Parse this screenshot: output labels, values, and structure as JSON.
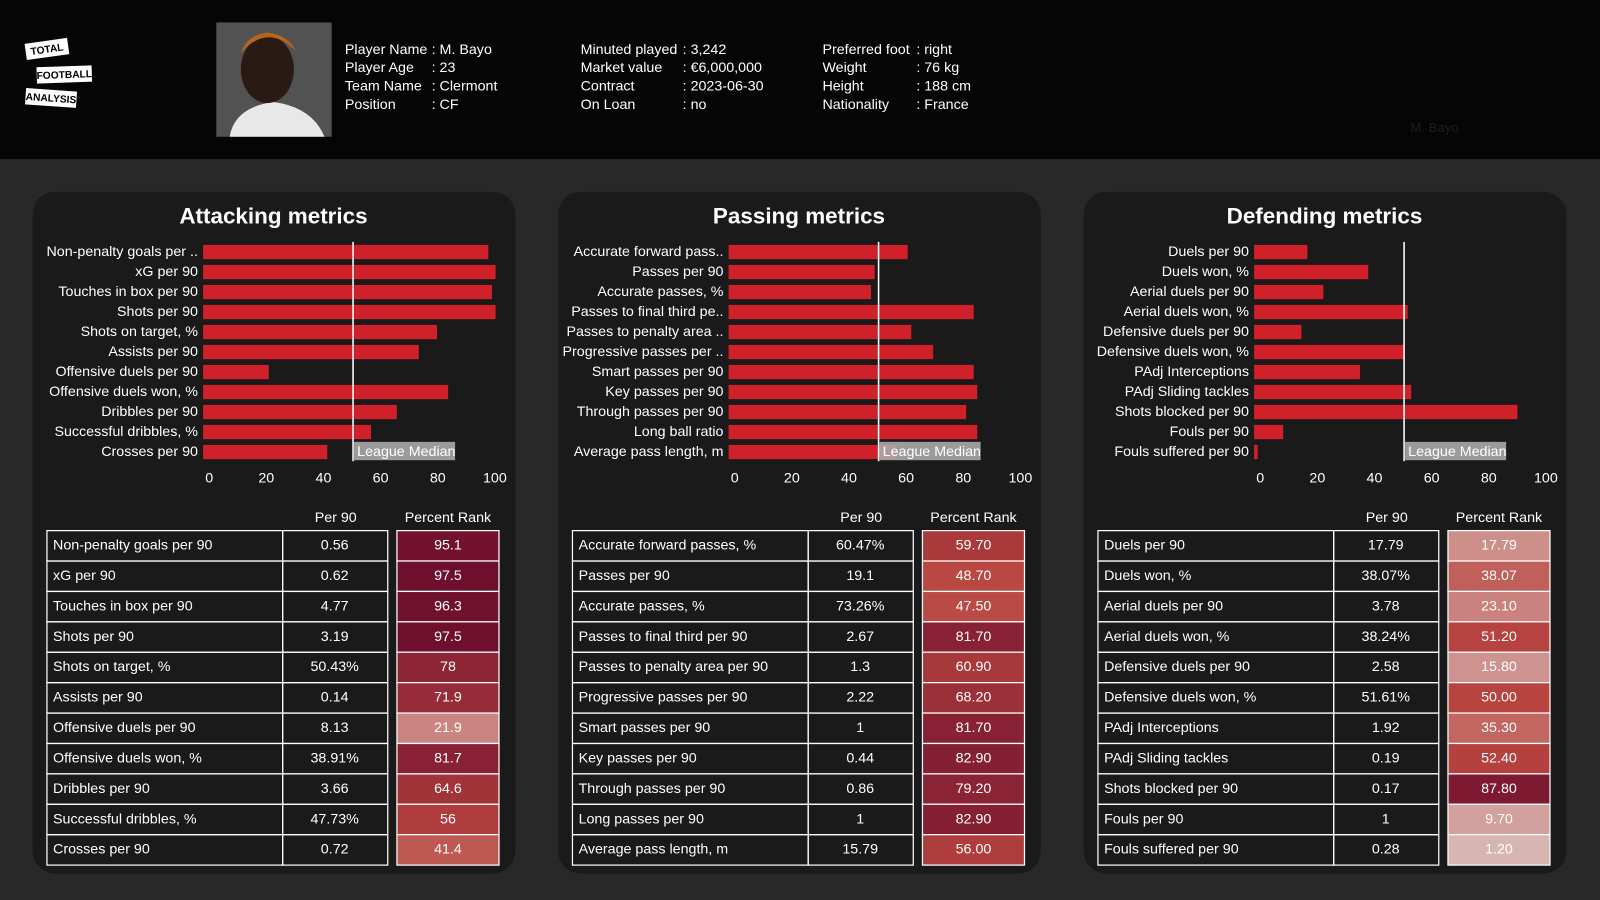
{
  "header": {
    "logo": [
      "TOTAL",
      "FOOTBALL",
      "ANALYSIS"
    ],
    "columns": [
      [
        {
          "label": "Player Name",
          "value": ": M. Bayo"
        },
        {
          "label": "Player Age",
          "value": ": 23"
        },
        {
          "label": "Team Name",
          "value": ": Clermont"
        },
        {
          "label": "Position",
          "value": ": CF"
        }
      ],
      [
        {
          "label": "Minuted played",
          "value": ": 3,242"
        },
        {
          "label": "Market value",
          "value": ": €6,000,000"
        },
        {
          "label": "Contract",
          "value": ": 2023-06-30"
        },
        {
          "label": "On Loan",
          "value": ": no"
        }
      ],
      [
        {
          "label": "Preferred foot",
          "value": ": right"
        },
        {
          "label": "Weight",
          "value": ": 76 kg"
        },
        {
          "label": "Height",
          "value": ": 188 cm"
        },
        {
          "label": "Nationality",
          "value": ": France"
        }
      ]
    ],
    "watermark": "M. Bayo"
  },
  "chart_data": [
    {
      "type": "bar",
      "title": "Attacking metrics",
      "color": "#d0202a",
      "categories": [
        "Non-penalty goals per ..",
        "xG per 90",
        "Touches in box per 90",
        "Shots per 90",
        "Shots on target, %",
        "Assists per 90",
        "Offensive duels per 90",
        "Offensive duels won, %",
        "Dribbles per 90",
        "Successful dribbles, %",
        "Crosses per 90"
      ],
      "values": [
        95.1,
        97.5,
        96.3,
        97.5,
        78,
        71.9,
        21.9,
        81.7,
        64.6,
        56,
        41.4
      ],
      "xlim": [
        0,
        100
      ],
      "xticks": [
        0,
        20,
        40,
        60,
        80,
        100
      ],
      "median": {
        "value": 50,
        "label": "League Median"
      }
    },
    {
      "type": "bar",
      "title": "Passing metrics",
      "color": "#d0202a",
      "categories": [
        "Accurate forward pass..",
        "Passes per 90",
        "Accurate passes, %",
        "Passes to final third pe..",
        "Passes to penalty area ..",
        "Progressive passes per ..",
        "Smart passes per 90",
        "Key passes per 90",
        "Through passes per 90",
        "Long ball ratio",
        "Average pass length, m"
      ],
      "values": [
        59.7,
        48.7,
        47.5,
        81.7,
        60.9,
        68.2,
        81.7,
        82.9,
        79.2,
        82.9,
        56
      ],
      "xlim": [
        0,
        100
      ],
      "xticks": [
        0,
        20,
        40,
        60,
        80,
        100
      ],
      "median": {
        "value": 50,
        "label": "League Median"
      }
    },
    {
      "type": "bar",
      "title": "Defending metrics",
      "color": "#d0202a",
      "categories": [
        "Duels per 90",
        "Duels won, %",
        "Aerial duels per 90",
        "Aerial duels won, %",
        "Defensive duels per 90",
        "Defensive duels won, %",
        "PAdj Interceptions",
        "PAdj Sliding tackles",
        "Shots blocked per 90",
        "Fouls per 90",
        "Fouls suffered per 90"
      ],
      "values": [
        17.79,
        38.07,
        23.1,
        51.2,
        15.8,
        50,
        35.3,
        52.4,
        87.8,
        9.7,
        1.2
      ],
      "xlim": [
        0,
        100
      ],
      "xticks": [
        0,
        20,
        40,
        60,
        80,
        100
      ],
      "median": {
        "value": 50,
        "label": "League Median"
      }
    }
  ],
  "tables": [
    {
      "columns": [
        "Per 90",
        "Percent Rank"
      ],
      "rows": [
        [
          "Non-penalty goals per 90",
          "0.56",
          "95.1"
        ],
        [
          "xG per 90",
          "0.62",
          "97.5"
        ],
        [
          "Touches in box per 90",
          "4.77",
          "96.3"
        ],
        [
          "Shots per 90",
          "3.19",
          "97.5"
        ],
        [
          "Shots on target, %",
          "50.43%",
          "78"
        ],
        [
          "Assists per 90",
          "0.14",
          "71.9"
        ],
        [
          "Offensive duels per 90",
          "8.13",
          "21.9"
        ],
        [
          "Offensive duels won, %",
          "38.91%",
          "81.7"
        ],
        [
          "Dribbles per 90",
          "3.66",
          "64.6"
        ],
        [
          "Successful dribbles, %",
          "47.73%",
          "56"
        ],
        [
          "Crosses per 90",
          "0.72",
          "41.4"
        ]
      ]
    },
    {
      "columns": [
        "Per 90",
        "Percent Rank"
      ],
      "rows": [
        [
          "Accurate forward passes, %",
          "60.47%",
          "59.70"
        ],
        [
          "Passes per 90",
          "19.1",
          "48.70"
        ],
        [
          "Accurate passes, %",
          "73.26%",
          "47.50"
        ],
        [
          "Passes to final third per 90",
          "2.67",
          "81.70"
        ],
        [
          "Passes to penalty area per 90",
          "1.3",
          "60.90"
        ],
        [
          "Progressive passes per 90",
          "2.22",
          "68.20"
        ],
        [
          "Smart passes per 90",
          "1",
          "81.70"
        ],
        [
          "Key passes per 90",
          "0.44",
          "82.90"
        ],
        [
          "Through passes per 90",
          "0.86",
          "79.20"
        ],
        [
          "Long passes per 90",
          "1",
          "82.90"
        ],
        [
          "Average pass length, m",
          "15.79",
          "56.00"
        ]
      ]
    },
    {
      "columns": [
        "Per 90",
        "Percent Rank"
      ],
      "rows": [
        [
          "Duels per 90",
          "17.79",
          "17.79"
        ],
        [
          "Duels won, %",
          "38.07%",
          "38.07"
        ],
        [
          "Aerial duels per 90",
          "3.78",
          "23.10"
        ],
        [
          "Aerial duels won, %",
          "38.24%",
          "51.20"
        ],
        [
          "Defensive duels per 90",
          "2.58",
          "15.80"
        ],
        [
          "Defensive duels won, %",
          "51.61%",
          "50.00"
        ],
        [
          "PAdj Interceptions",
          "1.92",
          "35.30"
        ],
        [
          "PAdj Sliding tackles",
          "0.19",
          "52.40"
        ],
        [
          "Shots blocked per 90",
          "0.17",
          "87.80"
        ],
        [
          "Fouls per 90",
          "1",
          "9.70"
        ],
        [
          "Fouls suffered per 90",
          "0.28",
          "1.20"
        ]
      ]
    }
  ]
}
